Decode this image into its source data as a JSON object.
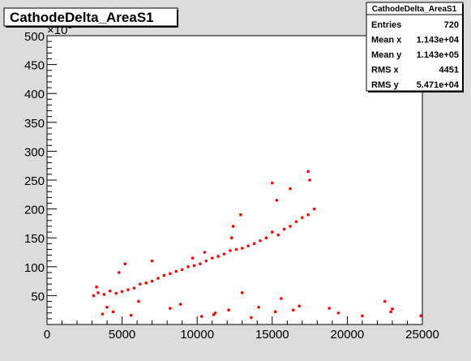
{
  "chart_data": {
    "type": "scatter",
    "title": "CathodeDelta_AreaS1",
    "xlim": [
      0,
      25000
    ],
    "ylim": [
      0,
      500000
    ],
    "x_ticks": [
      0,
      5000,
      10000,
      15000,
      20000,
      25000
    ],
    "x_tick_labels": [
      "0",
      "5000",
      "10000",
      "15000",
      "20000",
      "25000"
    ],
    "y_ticks": [
      50000,
      100000,
      150000,
      200000,
      250000,
      300000,
      350000,
      400000,
      450000,
      500000
    ],
    "y_tick_labels": [
      "50",
      "100",
      "150",
      "200",
      "250",
      "300",
      "350",
      "400",
      "450",
      "500"
    ],
    "y_multiplier": "×10",
    "y_multiplier_exp": "3",
    "marker_color": "#ff0000",
    "series": [
      {
        "x": [
          3100,
          3400,
          3800,
          4200,
          4600,
          5000,
          5400,
          5800,
          6200,
          6600,
          7000,
          7400,
          7800,
          8200,
          8600,
          9000,
          9400,
          9800,
          10200,
          10600,
          11000,
          11400,
          11800,
          12200,
          12600,
          13000,
          13400,
          13800,
          14200,
          14600,
          15000,
          15400,
          15800,
          16200,
          16600,
          17000,
          17400,
          17800,
          3300,
          4800,
          5200,
          7000,
          9700,
          10500,
          12300,
          12400,
          12900,
          15000,
          15300,
          16200,
          17400,
          17500,
          13000,
          15600,
          4000,
          4400,
          6100,
          8200,
          8900,
          11200,
          12100,
          14100,
          16400,
          18800,
          19400,
          21000,
          22500,
          22900,
          23000,
          24900,
          10300,
          11100,
          13600,
          15200,
          16800,
          3700,
          5600
        ],
        "y": [
          50000,
          55000,
          52000,
          58000,
          54000,
          57000,
          60000,
          63000,
          70000,
          72000,
          75000,
          80000,
          85000,
          88000,
          92000,
          95000,
          100000,
          102000,
          105000,
          110000,
          115000,
          118000,
          122000,
          128000,
          130000,
          132000,
          136000,
          140000,
          145000,
          150000,
          160000,
          155000,
          165000,
          170000,
          178000,
          185000,
          190000,
          200000,
          65000,
          90000,
          105000,
          110000,
          115000,
          125000,
          150000,
          170000,
          190000,
          245000,
          215000,
          235000,
          265000,
          250000,
          55000,
          45000,
          30000,
          22000,
          40000,
          28000,
          35000,
          20000,
          25000,
          30000,
          25000,
          28000,
          20000,
          15000,
          40000,
          22000,
          27000,
          15000,
          14000,
          17000,
          12000,
          22000,
          32000,
          18000,
          16000
        ]
      }
    ]
  },
  "stats": {
    "title": "CathodeDelta_AreaS1",
    "rows": [
      {
        "label": "Entries",
        "value": "720"
      },
      {
        "label": "Mean x",
        "value": "1.143e+04"
      },
      {
        "label": "Mean y",
        "value": "1.143e+05"
      },
      {
        "label": "RMS x",
        "value": "4451"
      },
      {
        "label": "RMS y",
        "value": "5.471e+04"
      }
    ]
  }
}
